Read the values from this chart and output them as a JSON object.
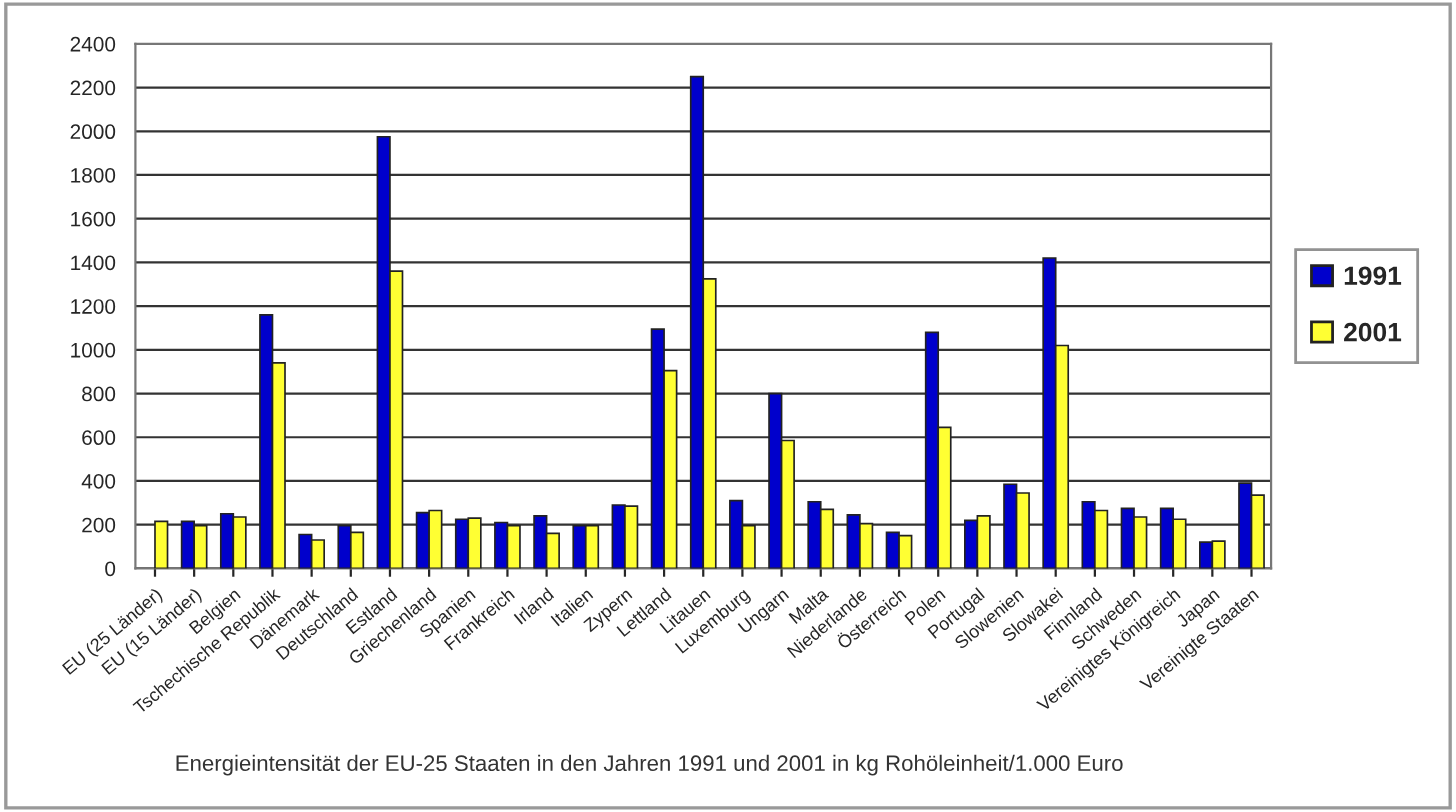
{
  "chart_data": {
    "type": "bar",
    "categories": [
      "EU (25 Länder)",
      "EU (15 Länder)",
      "Belgien",
      "Tschechische Republik",
      "Dänemark",
      "Deutschland",
      "Estland",
      "Griechenland",
      "Spanien",
      "Frankreich",
      "Irland",
      "Italien",
      "Zypern",
      "Lettland",
      "Litauen",
      "Luxemburg",
      "Ungarn",
      "Malta",
      "Niederlande",
      "Österreich",
      "Polen",
      "Portugal",
      "Slowenien",
      "Slowakei",
      "Finnland",
      "Schweden",
      "Vereinigtes Königreich",
      "Japan",
      "Vereinigte Staaten"
    ],
    "series": [
      {
        "name": "1991",
        "color": "#0000cc",
        "values": [
          null,
          215,
          250,
          1160,
          155,
          195,
          1975,
          255,
          225,
          210,
          240,
          195,
          290,
          1095,
          2250,
          310,
          800,
          305,
          245,
          165,
          1080,
          220,
          385,
          1420,
          305,
          275,
          275,
          120,
          390
        ]
      },
      {
        "name": "2001",
        "color": "#ffff33",
        "values": [
          215,
          195,
          235,
          940,
          130,
          165,
          1360,
          265,
          230,
          195,
          160,
          195,
          285,
          905,
          1325,
          195,
          585,
          270,
          205,
          150,
          645,
          240,
          345,
          1020,
          265,
          235,
          225,
          125,
          335
        ]
      }
    ],
    "ylim": [
      0,
      2400
    ],
    "yticks": [
      0,
      200,
      400,
      600,
      800,
      1000,
      1200,
      1400,
      1600,
      1800,
      2000,
      2200,
      2400
    ],
    "grid": "y",
    "legend": "right",
    "annotations": [
      "Energieintensität der EU-25 Staaten in den Jahren 1991 und 2001 in kg Rohöleinheit/1.000 Euro"
    ]
  }
}
